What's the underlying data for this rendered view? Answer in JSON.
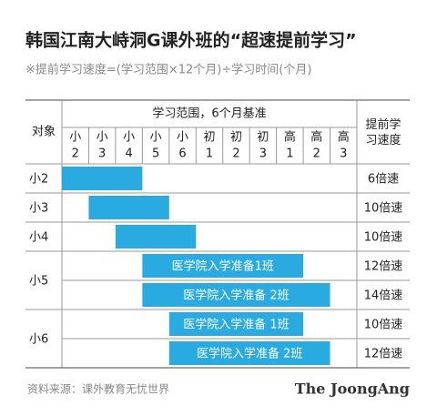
{
  "header": {
    "title": "韩国江南大峙洞G课外班的“超速提前学习”",
    "subtitle": "※提前学习速度=(学习范围×12个月)÷学习时间(个月)"
  },
  "table": {
    "target_header": "对象",
    "range_header": "学习范围，6个月基准",
    "speed_header": "提前学习速度",
    "columns": [
      {
        "level": "小",
        "grade": "2"
      },
      {
        "level": "小",
        "grade": "3"
      },
      {
        "level": "小",
        "grade": "4"
      },
      {
        "level": "小",
        "grade": "5"
      },
      {
        "level": "小",
        "grade": "6"
      },
      {
        "level": "初",
        "grade": "1"
      },
      {
        "level": "初",
        "grade": "2"
      },
      {
        "level": "初",
        "grade": "3"
      },
      {
        "level": "高",
        "grade": "1"
      },
      {
        "level": "高",
        "grade": "2"
      },
      {
        "level": "高",
        "grade": "3"
      }
    ],
    "groups": [
      {
        "target": "小2",
        "courses": [
          {
            "speed": "6倍速"
          }
        ]
      },
      {
        "target": "小3",
        "courses": [
          {
            "speed": "10倍速"
          }
        ]
      },
      {
        "target": "小4",
        "courses": [
          {
            "speed": "10倍速"
          }
        ]
      },
      {
        "target": "小5",
        "courses": [
          {
            "label": "医学院入学准备1班",
            "speed": "12倍速"
          },
          {
            "label": "医学院入学准备 2班",
            "speed": "14倍速"
          }
        ]
      },
      {
        "target": "小6",
        "courses": [
          {
            "label": "医学院入学准备 1班",
            "speed": "10倍速"
          },
          {
            "label": "医学院入学准备 2班",
            "speed": "12倍速"
          }
        ]
      }
    ]
  },
  "footer": {
    "source": "资料来源：课外教育无忧世界",
    "logo": "The JoongAng"
  }
}
